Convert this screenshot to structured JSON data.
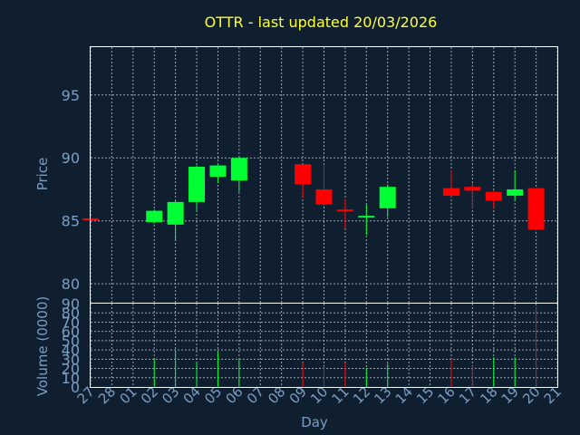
{
  "chart_data": [
    {
      "type": "candlestick",
      "title": "OTTR - last updated 20/03/2026",
      "ylabel": "Price",
      "ylim": [
        78.5,
        98.8
      ],
      "yticks": [
        80,
        85,
        90,
        95
      ],
      "grid": true,
      "up_color": "#00ff33",
      "down_color": "#ff0000",
      "categories": [
        "27",
        "28",
        "01",
        "02",
        "03",
        "04",
        "05",
        "06",
        "07",
        "08",
        "09",
        "10",
        "11",
        "12",
        "13",
        "14",
        "15",
        "16",
        "17",
        "18",
        "19",
        "20",
        "21"
      ],
      "candles": [
        {
          "x": "27",
          "open": 85.2,
          "high": 85.3,
          "low": 85.0,
          "close": 85.1
        },
        {
          "x": "02",
          "open": 84.9,
          "high": 85.9,
          "low": 84.8,
          "close": 85.8
        },
        {
          "x": "03",
          "open": 84.7,
          "high": 86.6,
          "low": 83.4,
          "close": 86.5
        },
        {
          "x": "04",
          "open": 86.5,
          "high": 89.4,
          "low": 85.8,
          "close": 89.3
        },
        {
          "x": "05",
          "open": 88.5,
          "high": 89.5,
          "low": 88.0,
          "close": 89.4
        },
        {
          "x": "06",
          "open": 88.2,
          "high": 90.1,
          "low": 87.3,
          "close": 90.0
        },
        {
          "x": "09",
          "open": 89.5,
          "high": 89.5,
          "low": 86.8,
          "close": 87.9
        },
        {
          "x": "10",
          "open": 87.5,
          "high": 89.5,
          "low": 86.2,
          "close": 86.3
        },
        {
          "x": "11",
          "open": 85.9,
          "high": 86.7,
          "low": 84.4,
          "close": 85.8
        },
        {
          "x": "12",
          "open": 85.3,
          "high": 86.3,
          "low": 83.9,
          "close": 85.4
        },
        {
          "x": "13",
          "open": 86.0,
          "high": 87.9,
          "low": 85.3,
          "close": 87.7
        },
        {
          "x": "16",
          "open": 87.6,
          "high": 89.0,
          "low": 86.9,
          "close": 87.0
        },
        {
          "x": "17",
          "open": 87.7,
          "high": 88.0,
          "low": 86.0,
          "close": 87.4
        },
        {
          "x": "18",
          "open": 87.3,
          "high": 87.4,
          "low": 86.0,
          "close": 86.6
        },
        {
          "x": "19",
          "open": 87.0,
          "high": 89.0,
          "low": 86.6,
          "close": 87.5
        },
        {
          "x": "20",
          "open": 87.6,
          "high": 87.6,
          "low": 84.2,
          "close": 84.3
        }
      ]
    },
    {
      "type": "bar",
      "ylabel": "Volume (0000)",
      "xlabel": "Day",
      "ylim": [
        0,
        90
      ],
      "yticks": [
        0,
        10,
        20,
        30,
        40,
        50,
        60,
        70,
        80,
        90
      ],
      "grid": true,
      "categories": [
        "27",
        "28",
        "01",
        "02",
        "03",
        "04",
        "05",
        "06",
        "07",
        "08",
        "09",
        "10",
        "11",
        "12",
        "13",
        "14",
        "15",
        "16",
        "17",
        "18",
        "19",
        "20",
        "21"
      ],
      "bars": [
        {
          "x": "02",
          "value": 30,
          "color": "#00ff33"
        },
        {
          "x": "03",
          "value": 38,
          "color": "#00ff33"
        },
        {
          "x": "04",
          "value": 27,
          "color": "#00ff33"
        },
        {
          "x": "05",
          "value": 38,
          "color": "#00ff33"
        },
        {
          "x": "06",
          "value": 30,
          "color": "#00ff33"
        },
        {
          "x": "09",
          "value": 26,
          "color": "#ff0000"
        },
        {
          "x": "10",
          "value": 22,
          "color": "#ff0000"
        },
        {
          "x": "11",
          "value": 26,
          "color": "#ff0000"
        },
        {
          "x": "12",
          "value": 20,
          "color": "#00ff33"
        },
        {
          "x": "13",
          "value": 25,
          "color": "#00ff33"
        },
        {
          "x": "16",
          "value": 30,
          "color": "#ff0000"
        },
        {
          "x": "17",
          "value": 23,
          "color": "#ff0000"
        },
        {
          "x": "18",
          "value": 32,
          "color": "#00ff33"
        },
        {
          "x": "19",
          "value": 32,
          "color": "#00ff33"
        },
        {
          "x": "20",
          "value": 86,
          "color": "#ff0000"
        }
      ]
    }
  ]
}
